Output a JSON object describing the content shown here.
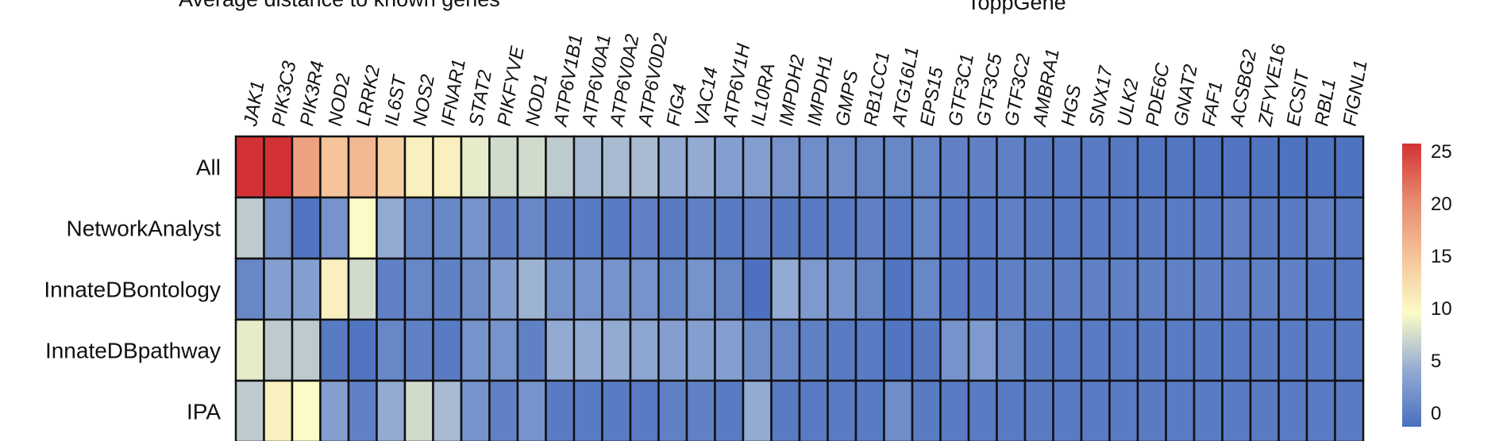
{
  "chart_data": {
    "type": "heatmap",
    "titles": [
      "Average distance to known genes",
      "ToppGene"
    ],
    "columns": [
      "JAK1",
      "PIK3C3",
      "PIK3R4",
      "NOD2",
      "LRRK2",
      "IL6ST",
      "NOS2",
      "IFNAR1",
      "STAT2",
      "PIKFYVE",
      "NOD1",
      "ATP6V1B1",
      "ATP6V0A1",
      "ATP6V0A2",
      "ATP6V0D2",
      "FIG4",
      "VAC14",
      "ATP6V1H",
      "IL10RA",
      "IMPDH2",
      "IMPDH1",
      "GMPS",
      "RB1CC1",
      "ATG16L1",
      "EPS15",
      "GTF3C1",
      "GTF3C5",
      "GTF3C2",
      "AMBRA1",
      "HGS",
      "SNX17",
      "ULK2",
      "PDE6C",
      "GNAT2",
      "FAF1",
      "ACSBG2",
      "ZFYVE16",
      "ECSIT",
      "RBL1",
      "FIGNL1"
    ],
    "rows": [
      "All",
      "NetworkAnalyst",
      "InnateDBontology",
      "InnateDBpathway",
      "IPA"
    ],
    "values": [
      [
        25,
        25,
        18,
        15,
        16,
        14,
        11,
        11,
        9,
        8,
        8,
        7,
        6,
        6,
        6,
        5,
        5,
        4,
        4,
        3,
        2.5,
        2.5,
        2,
        2,
        2,
        1.5,
        1.5,
        1.5,
        1,
        1,
        1,
        0.8,
        0.7,
        0.6,
        0.5,
        0.5,
        0.5,
        0.3,
        0.3,
        0.3
      ],
      [
        7,
        3,
        0.5,
        3,
        10,
        5,
        2,
        2,
        3,
        1.5,
        2,
        1,
        1,
        1,
        1.5,
        1,
        1.5,
        1,
        1.5,
        1,
        1,
        1,
        1.5,
        1,
        2,
        1,
        1,
        1.5,
        1,
        1,
        1,
        1,
        1,
        1,
        1,
        1.5,
        1,
        1,
        1.5,
        1
      ],
      [
        2,
        4,
        4,
        11,
        8,
        1.5,
        2,
        1.5,
        2.5,
        4,
        5.5,
        3,
        3,
        3,
        3,
        2,
        3,
        2,
        0.2,
        5,
        3.5,
        3,
        2,
        0.5,
        2,
        1,
        1,
        1.5,
        1.5,
        1.5,
        1.5,
        1.5,
        1.5,
        1.5,
        1.5,
        1.5,
        1.5,
        1.5,
        1,
        1
      ],
      [
        9,
        7,
        7,
        1,
        0.5,
        2,
        1.5,
        1,
        3,
        3,
        1.5,
        5,
        5,
        5,
        4.5,
        4,
        4,
        4,
        2.5,
        2,
        1.5,
        1,
        1,
        0.5,
        0.8,
        3,
        3.5,
        2,
        1,
        1,
        1,
        1,
        1,
        1,
        1,
        1,
        1,
        1,
        1,
        1
      ],
      [
        7,
        11,
        10,
        4,
        1.5,
        5,
        8,
        6,
        3,
        1.5,
        3,
        1,
        1,
        1,
        1,
        1.5,
        1.5,
        1,
        5,
        1,
        1,
        1,
        1,
        2.5,
        1,
        1,
        1,
        1,
        1,
        1,
        1,
        1,
        1,
        1,
        1,
        1,
        1,
        1,
        1,
        1
      ]
    ],
    "colorbar": {
      "ticks": [
        0,
        5,
        10,
        15,
        20,
        25
      ],
      "range": [
        0,
        25
      ]
    },
    "colors": {
      "low": "#4a6fbf",
      "mid": "#fbfbc8",
      "high": "#d33235",
      "border": "#111111"
    }
  }
}
